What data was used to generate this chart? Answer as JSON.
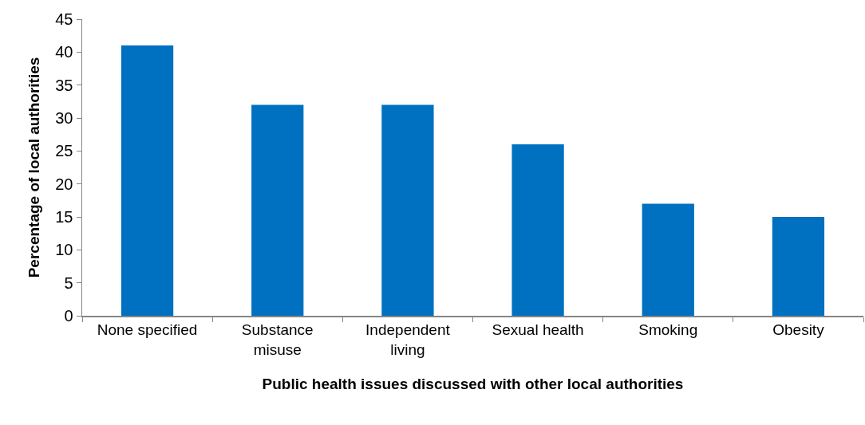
{
  "chart_data": {
    "type": "bar",
    "xlabel": "Public health issues discussed with other local authorities",
    "ylabel": "Percentage of local authorities",
    "categories": [
      "None specified",
      "Substance misuse",
      "Independent living",
      "Sexual health",
      "Smoking",
      "Obesity"
    ],
    "values": [
      41,
      32,
      32,
      26,
      17,
      15
    ],
    "color": "#0070c0",
    "ylim": [
      0,
      45
    ],
    "yticks": [
      0,
      5,
      10,
      15,
      20,
      25,
      30,
      35,
      40,
      45
    ]
  }
}
